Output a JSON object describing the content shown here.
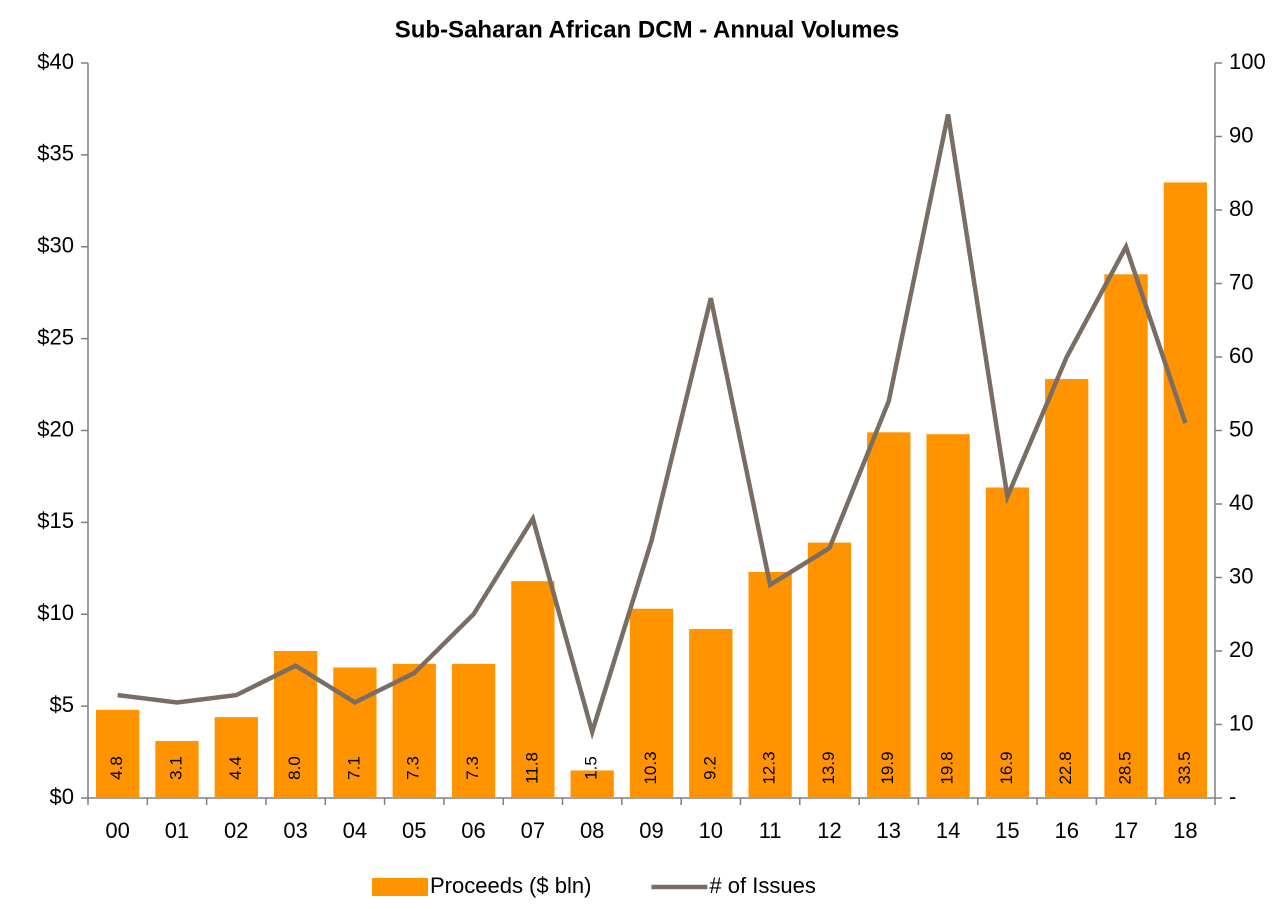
{
  "chart_data": {
    "type": "bar_line",
    "title": "Sub-Saharan African DCM - Annual Volumes",
    "categories": [
      "00",
      "01",
      "02",
      "03",
      "04",
      "05",
      "06",
      "07",
      "08",
      "09",
      "10",
      "11",
      "12",
      "13",
      "14",
      "15",
      "16",
      "17",
      "18"
    ],
    "series": [
      {
        "name": "Proceeds ($ bln)",
        "type": "bar",
        "color": "#ff9400",
        "axis": "y",
        "values": [
          4.8,
          3.1,
          4.4,
          8.0,
          7.1,
          7.3,
          7.3,
          11.8,
          1.5,
          10.3,
          9.2,
          12.3,
          13.9,
          19.9,
          19.8,
          16.9,
          22.8,
          28.5,
          33.5
        ],
        "value_labels": [
          "4.8",
          "3.1",
          "4.4",
          "8.0",
          "7.1",
          "7.3",
          "7.3",
          "11.8",
          "1.5",
          "10.3",
          "9.2",
          "12.3",
          "13.9",
          "19.9",
          "19.8",
          "16.9",
          "22.8",
          "28.5",
          "33.5"
        ]
      },
      {
        "name": "# of Issues",
        "type": "line",
        "color": "#7a6e64",
        "axis": "y2",
        "values": [
          14,
          13,
          14,
          18,
          13,
          17,
          25,
          38,
          9,
          35,
          68,
          29,
          34,
          54,
          93,
          41,
          60,
          75,
          51
        ]
      }
    ],
    "ylim": [
      0,
      40
    ],
    "yticks": [
      {
        "value": 0,
        "label": "$0"
      },
      {
        "value": 5,
        "label": "$5"
      },
      {
        "value": 10,
        "label": "$10"
      },
      {
        "value": 15,
        "label": "$15"
      },
      {
        "value": 20,
        "label": "$20"
      },
      {
        "value": 25,
        "label": "$25"
      },
      {
        "value": 30,
        "label": "$30"
      },
      {
        "value": 35,
        "label": "$35"
      },
      {
        "value": 40,
        "label": "$40"
      }
    ],
    "y2lim": [
      0,
      100
    ],
    "y2ticks": [
      {
        "value": 0,
        "label": "-"
      },
      10,
      20,
      30,
      40,
      50,
      60,
      70,
      80,
      90,
      100
    ],
    "legend": "bottom"
  }
}
